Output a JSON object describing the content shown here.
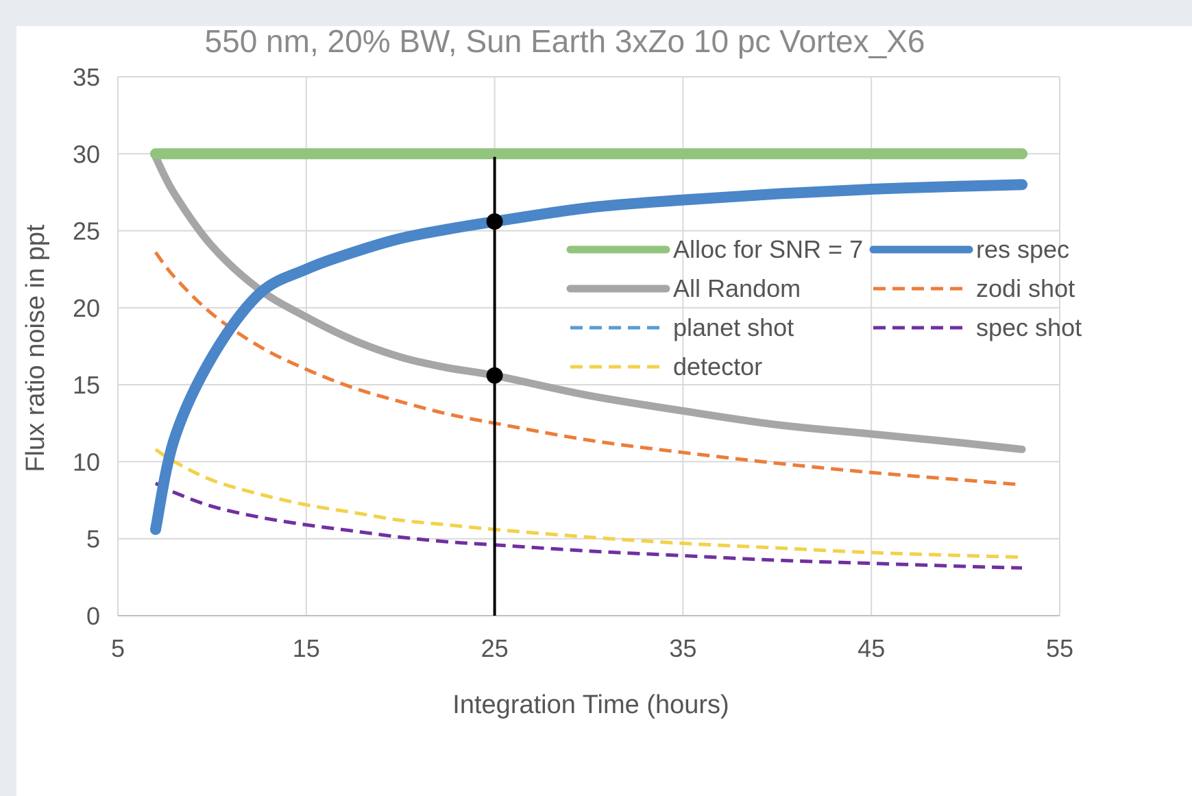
{
  "chart_data": {
    "type": "line",
    "title": "550 nm, 20% BW,  Sun Earth 3xZo 10 pc  Vortex_X6",
    "xlabel": "Integration Time  (hours)",
    "ylabel": "Flux ratio noise  in  ppt",
    "xlim": [
      5,
      55
    ],
    "ylim": [
      0,
      35
    ],
    "x_ticks": [
      "5",
      "15",
      "25",
      "35",
      "45",
      "55"
    ],
    "y_ticks": [
      "0",
      "5",
      "10",
      "15",
      "20",
      "25",
      "30",
      "35"
    ],
    "grid": true,
    "legend_position": "center-right",
    "x": [
      7,
      8,
      10,
      12.5,
      15,
      17.5,
      20,
      22.5,
      25,
      30,
      35,
      40,
      45,
      50,
      53
    ],
    "series": [
      {
        "name": "Alloc for SNR = 7",
        "color": "#92c47d",
        "style": "solid-thick",
        "values": [
          30,
          30,
          30,
          30,
          30,
          30,
          30,
          30,
          30,
          30,
          30,
          30,
          30,
          30,
          30
        ]
      },
      {
        "name": "res spec",
        "color": "#4a86c8",
        "style": "solid-thick",
        "values": [
          5.6,
          11.5,
          16.8,
          20.9,
          22.5,
          23.6,
          24.5,
          25.1,
          25.6,
          26.5,
          27.0,
          27.4,
          27.7,
          27.9,
          28.0
        ]
      },
      {
        "name": "All Random",
        "color": "#a6a6a6",
        "style": "solid-medium",
        "values": [
          29.8,
          27.4,
          24.0,
          21.2,
          19.4,
          17.9,
          16.8,
          16.1,
          15.6,
          14.3,
          13.3,
          12.4,
          11.8,
          11.2,
          10.8
        ]
      },
      {
        "name": "zodi shot",
        "color": "#ec7d3a",
        "style": "dashed",
        "values": [
          23.6,
          22.0,
          19.6,
          17.5,
          16.0,
          14.8,
          13.9,
          13.1,
          12.5,
          11.4,
          10.6,
          9.9,
          9.3,
          8.8,
          8.5
        ]
      },
      {
        "name": "planet shot",
        "color": "#5b9bd5",
        "style": "dashed",
        "values": [
          null,
          null,
          null,
          null,
          null,
          null,
          null,
          null,
          null,
          null,
          null,
          null,
          null,
          null,
          null
        ]
      },
      {
        "name": "spec shot",
        "color": "#7030a0",
        "style": "dashed",
        "values": [
          8.6,
          8.0,
          7.1,
          6.4,
          5.9,
          5.5,
          5.1,
          4.8,
          4.6,
          4.2,
          3.9,
          3.6,
          3.4,
          3.2,
          3.1
        ]
      },
      {
        "name": "detector",
        "color": "#f2d24b",
        "style": "dashed",
        "values": [
          10.8,
          10.0,
          8.8,
          7.9,
          7.2,
          6.7,
          6.2,
          5.9,
          5.6,
          5.1,
          4.7,
          4.4,
          4.1,
          3.9,
          3.8
        ]
      }
    ],
    "annotations": [
      {
        "type": "vline",
        "x": 25,
        "y_from": 0,
        "y_to": 29.8,
        "color": "#000000"
      },
      {
        "type": "point",
        "x": 25,
        "y": 25.6,
        "color": "#000000"
      },
      {
        "type": "point",
        "x": 25,
        "y": 15.6,
        "color": "#000000"
      }
    ]
  }
}
